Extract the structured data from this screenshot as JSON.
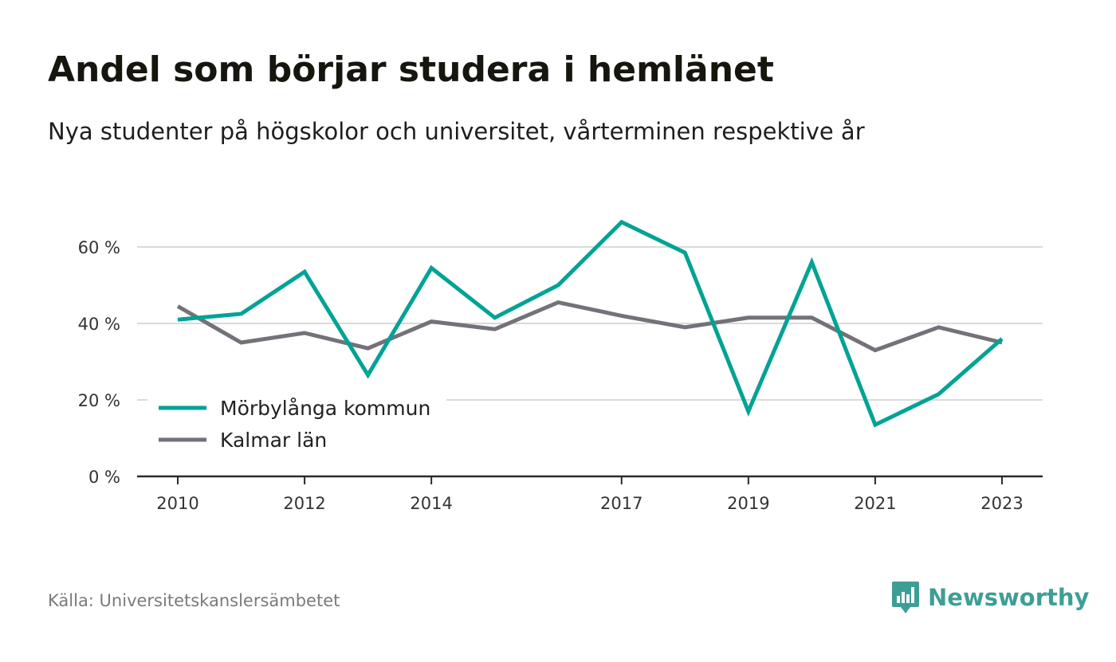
{
  "chart_data": {
    "type": "line",
    "title": "Andel som börjar studera i hemlänet",
    "subtitle": "Nya studenter på högskolor och universitet, vårterminen respektive år",
    "source": "Källa: Universitetskanslersämbetet",
    "x": [
      2010,
      2011,
      2012,
      2013,
      2014,
      2015,
      2016,
      2017,
      2018,
      2019,
      2020,
      2021,
      2022,
      2023
    ],
    "x_tick_labels": [
      "2010",
      "2012",
      "2014",
      "2017",
      "2019",
      "2021",
      "2023"
    ],
    "y_tick_labels": [
      "0 %",
      "20 %",
      "40 %",
      "60 %"
    ],
    "ylim": [
      0,
      70
    ],
    "y_ticks": [
      0,
      20,
      40,
      60
    ],
    "grid": true,
    "legend_position": "bottom-left",
    "series": [
      {
        "name": "Mörbylånga kommun",
        "color": "#00a395",
        "values": [
          41,
          42.5,
          53.5,
          26.5,
          54.5,
          41.5,
          50,
          66.5,
          58.5,
          17,
          56,
          13.5,
          21.5,
          36
        ]
      },
      {
        "name": "Kalmar län",
        "color": "#737279",
        "values": [
          44.5,
          35,
          37.5,
          33.5,
          40.5,
          38.5,
          45.5,
          42,
          39,
          41.5,
          41.5,
          33,
          39,
          35
        ]
      }
    ]
  },
  "brand": {
    "name": "Newsworthy",
    "logo_icon": "bar-chart-speech-icon",
    "color": "#3e9e96"
  }
}
